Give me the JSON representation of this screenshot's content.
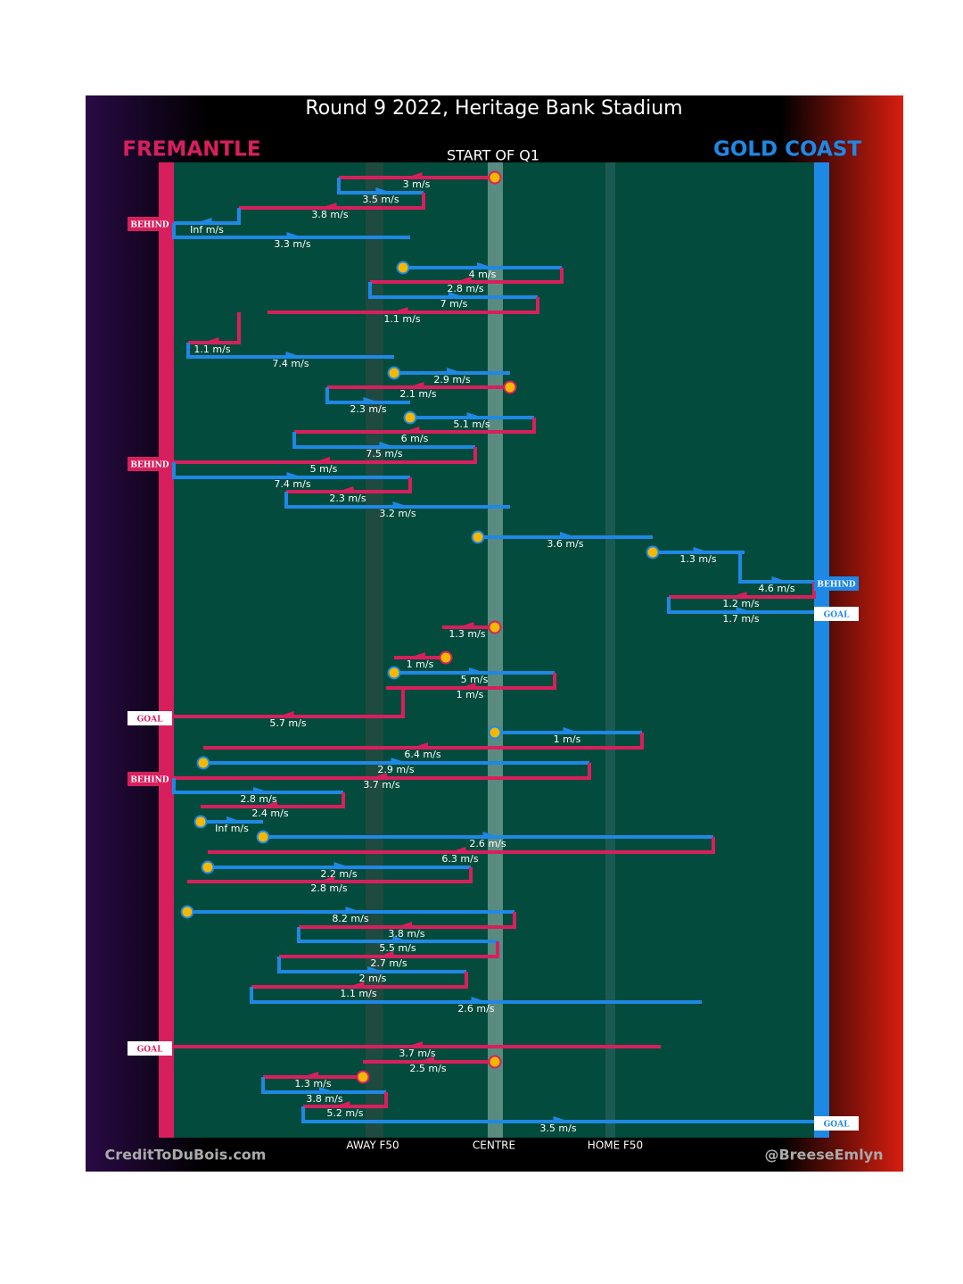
{
  "title": "Round 9 2022, Heritage Bank Stadium",
  "teams": {
    "left": "FREMANTLE",
    "right": "GOLD COAST"
  },
  "period": "START OF Q1",
  "zones": [
    "AWAY F50",
    "CENTRE",
    "HOME F50"
  ],
  "footer": {
    "left": "CreditToDuBois.com",
    "right": "@BreeseEmlyn"
  },
  "passes": [
    "3 m/s",
    "3.5 m/s",
    "3.8 m/s",
    "Inf m/s",
    "3.3 m/s",
    "4 m/s",
    "2.8 m/s",
    "7 m/s",
    "1.1 m/s",
    "1.1 m/s",
    "7.4 m/s",
    "2.9 m/s",
    "2.1 m/s",
    "2.3 m/s",
    "5.1 m/s",
    "6 m/s",
    "7.5 m/s",
    "5 m/s",
    "7.4 m/s",
    "2.3 m/s",
    "3.2 m/s",
    "3.6 m/s",
    "1.3 m/s",
    "4.6 m/s",
    "1.2 m/s",
    "1.7 m/s",
    "1.3 m/s",
    "1 m/s",
    "5 m/s",
    "1 m/s",
    "5.7 m/s",
    "1 m/s",
    "6.4 m/s",
    "2.9 m/s",
    "3.7 m/s",
    "2.8 m/s",
    "2.4 m/s",
    "Inf m/s",
    "2.6 m/s",
    "6.3 m/s",
    "2.2 m/s",
    "2.8 m/s",
    "8.2 m/s",
    "3.8 m/s",
    "5.5 m/s",
    "2.7 m/s",
    "2 m/s",
    "1.1 m/s",
    "2.6 m/s",
    "3.7 m/s",
    "2.5 m/s",
    "1.3 m/s",
    "3.8 m/s",
    "5.2 m/s",
    "3.5 m/s"
  ],
  "outcomes": [
    "BEHIND",
    "BEHIND",
    "BEHIND",
    "GOAL",
    "GOAL",
    "BEHIND",
    "GOAL",
    "GOAL"
  ]
}
